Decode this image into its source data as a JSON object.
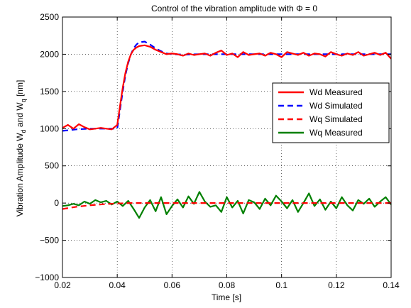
{
  "chart_data": {
    "type": "line",
    "title": "Control of the vibration amplitude with Φ = 0",
    "xlabel": "Time [s]",
    "ylabel": {
      "prefix": "Vibration Amplitude  W",
      "sub1": "d",
      "mid": " and W",
      "sub2": "q",
      "suffix": " [nm]"
    },
    "xlim": [
      0.02,
      0.14
    ],
    "ylim": [
      -1000,
      2500
    ],
    "xticks": [
      0.02,
      0.04,
      0.06,
      0.08,
      0.1,
      0.12,
      0.14
    ],
    "xtick_labels": [
      "0.02",
      "0.04",
      "0.06",
      "0.08",
      "0.1",
      "0.12",
      "0.14"
    ],
    "yticks": [
      -1000,
      -500,
      0,
      500,
      1000,
      1500,
      2000,
      2500
    ],
    "ytick_labels": [
      "−1000",
      "−500",
      "0",
      "500",
      "1000",
      "1500",
      "2000",
      "2500"
    ],
    "grid": true,
    "legend_position": "center-right",
    "series": [
      {
        "name": "Wd Measured",
        "color": "#ff0000",
        "dash": "solid",
        "x": [
          0.02,
          0.022,
          0.024,
          0.026,
          0.028,
          0.03,
          0.032,
          0.034,
          0.036,
          0.038,
          0.04,
          0.041,
          0.042,
          0.043,
          0.044,
          0.045,
          0.046,
          0.047,
          0.048,
          0.05,
          0.052,
          0.054,
          0.056,
          0.058,
          0.06,
          0.062,
          0.064,
          0.066,
          0.068,
          0.07,
          0.072,
          0.074,
          0.076,
          0.078,
          0.08,
          0.082,
          0.084,
          0.086,
          0.088,
          0.09,
          0.092,
          0.094,
          0.096,
          0.098,
          0.1,
          0.102,
          0.104,
          0.106,
          0.108,
          0.11,
          0.112,
          0.114,
          0.116,
          0.118,
          0.12,
          0.122,
          0.124,
          0.126,
          0.128,
          0.13,
          0.132,
          0.134,
          0.136,
          0.138,
          0.14
        ],
        "y": [
          1010,
          1050,
          1000,
          1060,
          1020,
          990,
          1000,
          1010,
          1000,
          990,
          1050,
          1300,
          1550,
          1750,
          1900,
          2000,
          2060,
          2090,
          2110,
          2120,
          2100,
          2060,
          2030,
          2000,
          2010,
          2000,
          1980,
          2010,
          1990,
          2000,
          2010,
          1980,
          2020,
          2050,
          1990,
          2010,
          1960,
          2030,
          1990,
          2000,
          2010,
          1980,
          2020,
          2000,
          1960,
          2030,
          2010,
          1990,
          2020,
          1980,
          2010,
          2000,
          1970,
          2030,
          2000,
          1980,
          2010,
          1990,
          2030,
          1980,
          2000,
          2020,
          1990,
          2020,
          1940
        ]
      },
      {
        "name": "Wd Simulated",
        "color": "#0000ff",
        "dash": "dashed",
        "x": [
          0.02,
          0.025,
          0.03,
          0.035,
          0.04,
          0.041,
          0.042,
          0.043,
          0.044,
          0.045,
          0.046,
          0.047,
          0.048,
          0.05,
          0.052,
          0.054,
          0.056,
          0.058,
          0.06,
          0.065,
          0.07,
          0.08,
          0.09,
          0.1,
          0.11,
          0.12,
          0.13,
          0.14
        ],
        "y": [
          970,
          990,
          1000,
          1000,
          1000,
          1250,
          1500,
          1720,
          1880,
          2000,
          2080,
          2130,
          2160,
          2170,
          2130,
          2080,
          2040,
          2010,
          2000,
          1995,
          2000,
          2000,
          2000,
          2000,
          2000,
          2000,
          2000,
          2000
        ]
      },
      {
        "name": "Wq Simulated",
        "color": "#ff0000",
        "dash": "dashed",
        "x": [
          0.02,
          0.025,
          0.03,
          0.035,
          0.04,
          0.045,
          0.05,
          0.06,
          0.07,
          0.08,
          0.09,
          0.1,
          0.11,
          0.12,
          0.13,
          0.14
        ],
        "y": [
          -80,
          -50,
          -30,
          -15,
          -5,
          0,
          0,
          0,
          0,
          0,
          0,
          0,
          0,
          0,
          0,
          0
        ]
      },
      {
        "name": "Wq Measured",
        "color": "#008000",
        "dash": "solid",
        "x": [
          0.02,
          0.022,
          0.024,
          0.026,
          0.028,
          0.03,
          0.032,
          0.034,
          0.036,
          0.038,
          0.04,
          0.042,
          0.044,
          0.046,
          0.048,
          0.05,
          0.052,
          0.054,
          0.056,
          0.058,
          0.06,
          0.062,
          0.064,
          0.066,
          0.068,
          0.07,
          0.072,
          0.074,
          0.076,
          0.078,
          0.08,
          0.082,
          0.084,
          0.086,
          0.088,
          0.09,
          0.092,
          0.094,
          0.096,
          0.098,
          0.1,
          0.102,
          0.104,
          0.106,
          0.108,
          0.11,
          0.112,
          0.114,
          0.116,
          0.118,
          0.12,
          0.122,
          0.124,
          0.126,
          0.128,
          0.13,
          0.132,
          0.134,
          0.136,
          0.138,
          0.14
        ],
        "y": [
          -40,
          -30,
          -10,
          -30,
          20,
          -10,
          40,
          10,
          30,
          -20,
          20,
          -40,
          30,
          -80,
          -200,
          -60,
          40,
          -110,
          80,
          -150,
          -40,
          50,
          -60,
          90,
          -10,
          150,
          20,
          -50,
          -30,
          -120,
          80,
          -60,
          30,
          -140,
          40,
          10,
          -80,
          60,
          -30,
          100,
          20,
          -70,
          40,
          -120,
          0,
          130,
          -40,
          50,
          -90,
          20,
          -70,
          80,
          -30,
          -100,
          40,
          -10,
          60,
          -50,
          20,
          80,
          -20
        ]
      }
    ]
  }
}
